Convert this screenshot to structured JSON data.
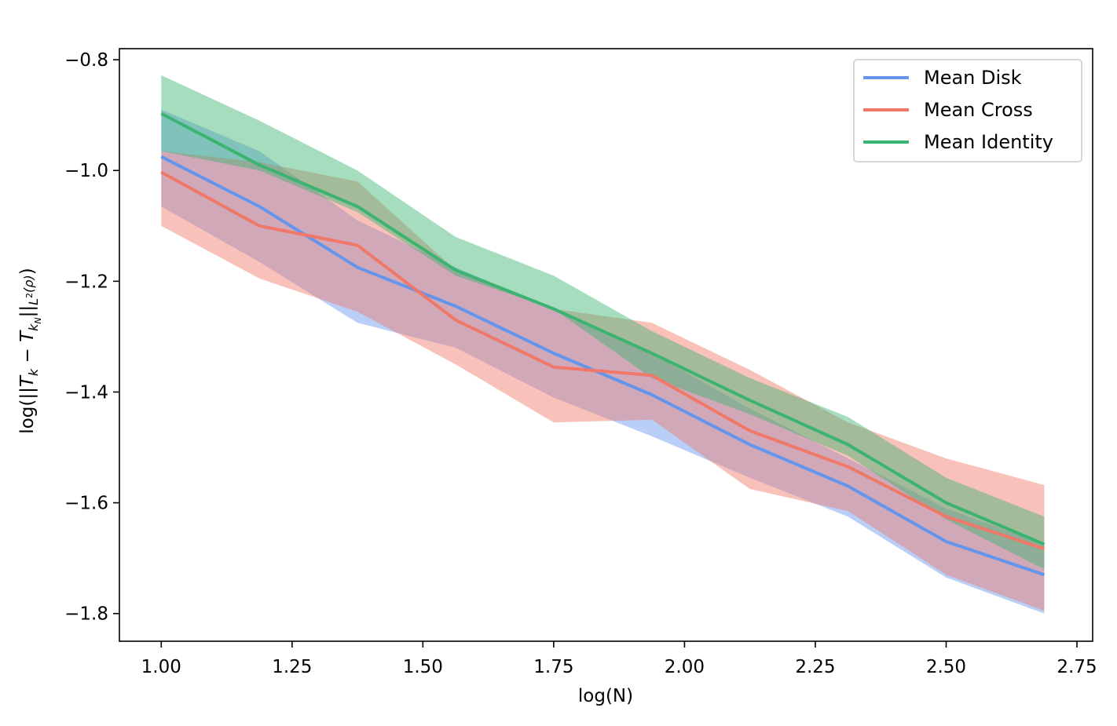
{
  "chart_data": {
    "type": "line",
    "title": "",
    "xlabel": "log(N)",
    "ylabel": "log(||T_k − T_kN||L²(ρ))",
    "xlim": [
      0.92,
      2.78
    ],
    "ylim": [
      -1.85,
      -0.78
    ],
    "xticks": [
      1.0,
      1.25,
      1.5,
      1.75,
      2.0,
      2.25,
      2.5,
      2.75
    ],
    "xtick_labels": [
      "1.00",
      "1.25",
      "1.50",
      "1.75",
      "2.00",
      "2.25",
      "2.50",
      "2.75"
    ],
    "yticks": [
      -0.8,
      -1.0,
      -1.2,
      -1.4,
      -1.6,
      -1.8
    ],
    "ytick_labels": [
      "−0.8",
      "−1.0",
      "−1.2",
      "−1.4",
      "−1.6",
      "−1.8"
    ],
    "grid": false,
    "legend_position": "top-right",
    "x": [
      1.0,
      1.1875,
      1.375,
      1.5625,
      1.75,
      1.9375,
      2.125,
      2.3125,
      2.5,
      2.6875
    ],
    "series": [
      {
        "name": "Mean Disk",
        "color": "#6495ED",
        "values": [
          -0.975,
          -1.065,
          -1.175,
          -1.245,
          -1.33,
          -1.405,
          -1.495,
          -1.57,
          -1.67,
          -1.73
        ],
        "lower": [
          -1.065,
          -1.165,
          -1.275,
          -1.32,
          -1.41,
          -1.48,
          -1.555,
          -1.625,
          -1.735,
          -1.8
        ],
        "upper": [
          -0.89,
          -0.965,
          -1.09,
          -1.175,
          -1.25,
          -1.33,
          -1.43,
          -1.52,
          -1.61,
          -1.675
        ]
      },
      {
        "name": "Mean Cross",
        "color": "#F07868",
        "values": [
          -1.003,
          -1.1,
          -1.135,
          -1.27,
          -1.355,
          -1.37,
          -1.47,
          -1.535,
          -1.625,
          -1.683
        ],
        "lower": [
          -1.1,
          -1.195,
          -1.255,
          -1.35,
          -1.455,
          -1.45,
          -1.575,
          -1.615,
          -1.73,
          -1.795
        ],
        "upper": [
          -0.965,
          -0.985,
          -1.02,
          -1.18,
          -1.25,
          -1.275,
          -1.36,
          -1.455,
          -1.52,
          -1.568
        ]
      },
      {
        "name": "Mean Identity",
        "color": "#3CB371",
        "values": [
          -0.897,
          -0.99,
          -1.065,
          -1.18,
          -1.25,
          -1.33,
          -1.415,
          -1.495,
          -1.6,
          -1.675
        ],
        "lower": [
          -0.965,
          -1.0,
          -1.075,
          -1.19,
          -1.25,
          -1.375,
          -1.44,
          -1.515,
          -1.63,
          -1.72
        ],
        "upper": [
          -0.828,
          -0.91,
          -1.0,
          -1.12,
          -1.19,
          -1.29,
          -1.375,
          -1.445,
          -1.555,
          -1.625
        ]
      }
    ]
  }
}
